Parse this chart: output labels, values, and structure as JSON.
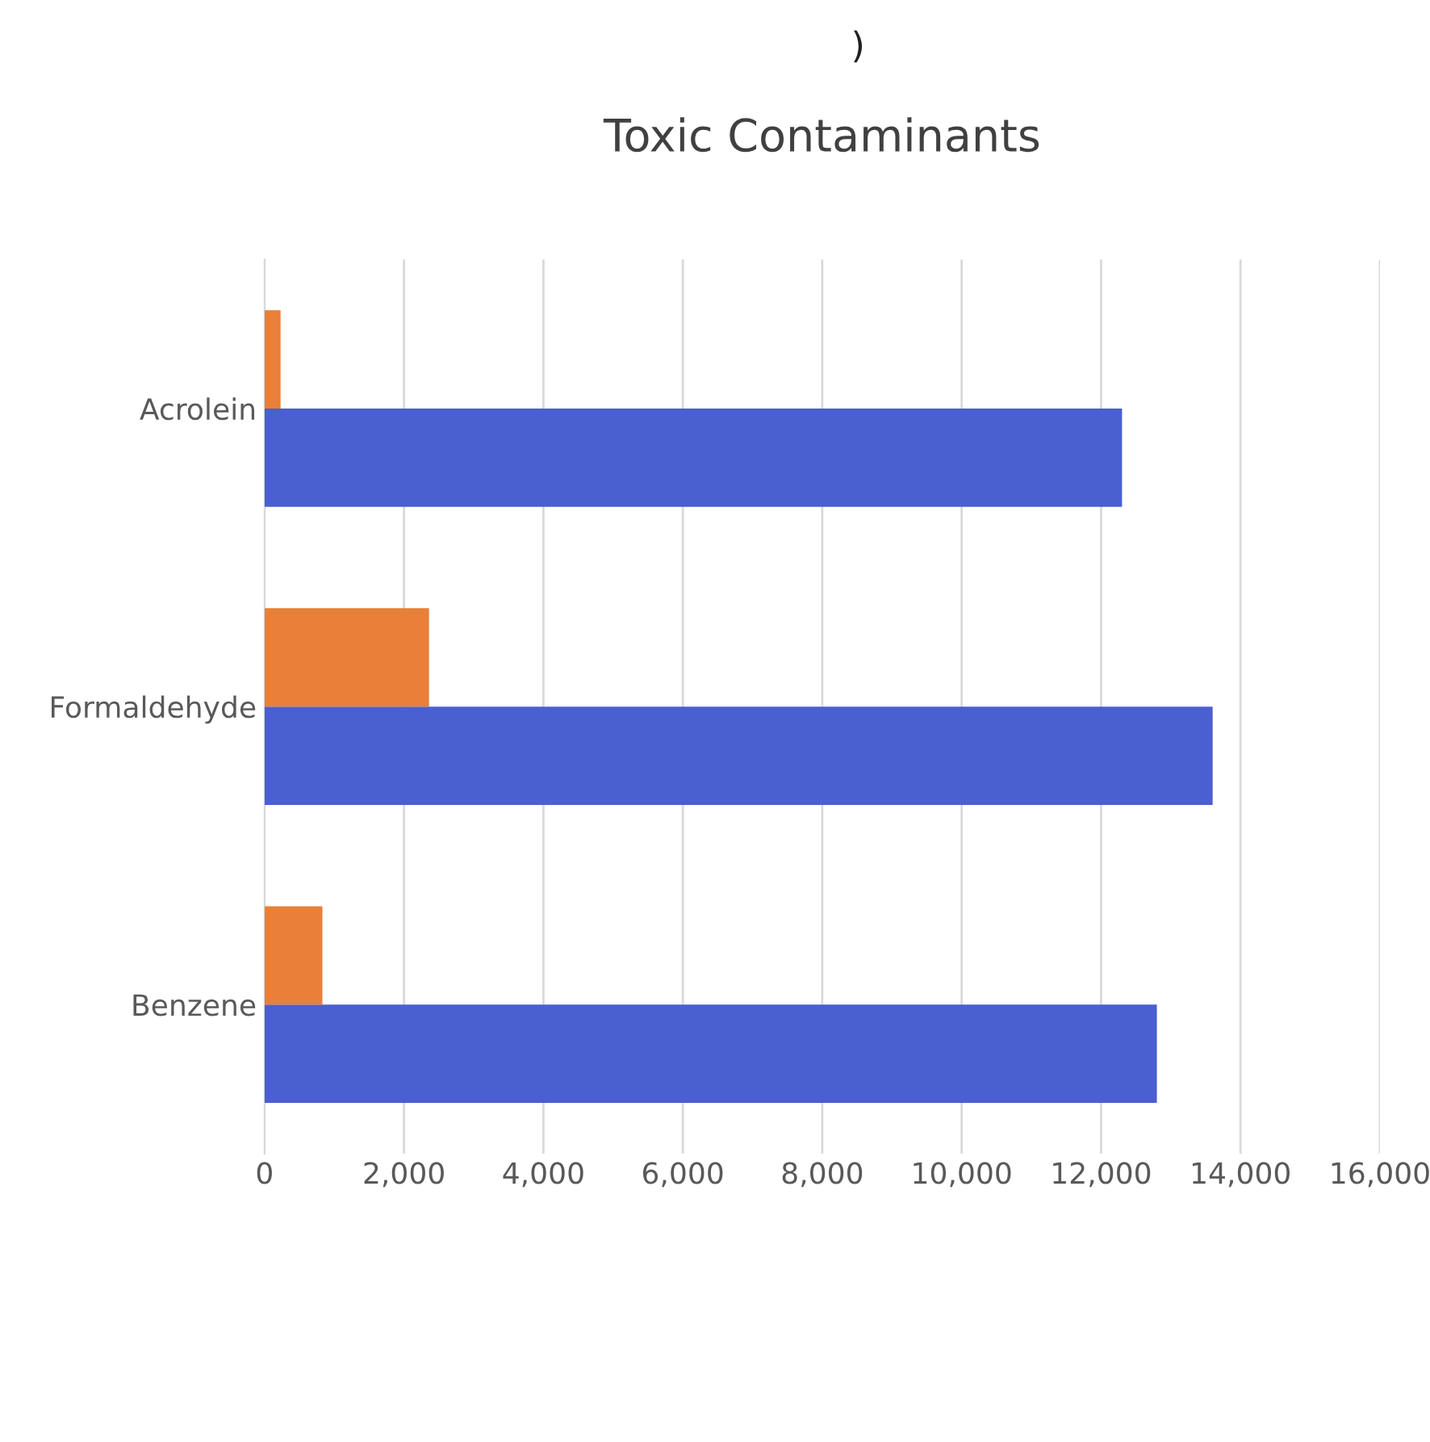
{
  "chart_data": {
    "type": "bar",
    "orientation": "horizontal",
    "title": "Toxic Contaminants",
    "annotations": [
      ")"
    ],
    "categories": [
      "Acrolein",
      "Formaldehyde",
      "Benzene"
    ],
    "series": [
      {
        "color": "#4a5fd0",
        "values": [
          12300,
          13600,
          12800
        ]
      },
      {
        "color": "#e8803a",
        "values": [
          230,
          2360,
          830
        ]
      }
    ],
    "xlim": [
      0,
      16000
    ],
    "xticks": [
      {
        "value": 0,
        "label": "0"
      },
      {
        "value": 2000,
        "label": "2,000"
      },
      {
        "value": 4000,
        "label": "4,000"
      },
      {
        "value": 6000,
        "label": "6,000"
      },
      {
        "value": 8000,
        "label": "8,000"
      },
      {
        "value": 10000,
        "label": "10,000"
      },
      {
        "value": 12000,
        "label": "12,000"
      },
      {
        "value": 14000,
        "label": "14,000"
      },
      {
        "value": 16000,
        "label": "16,000"
      }
    ],
    "grid": "x"
  }
}
